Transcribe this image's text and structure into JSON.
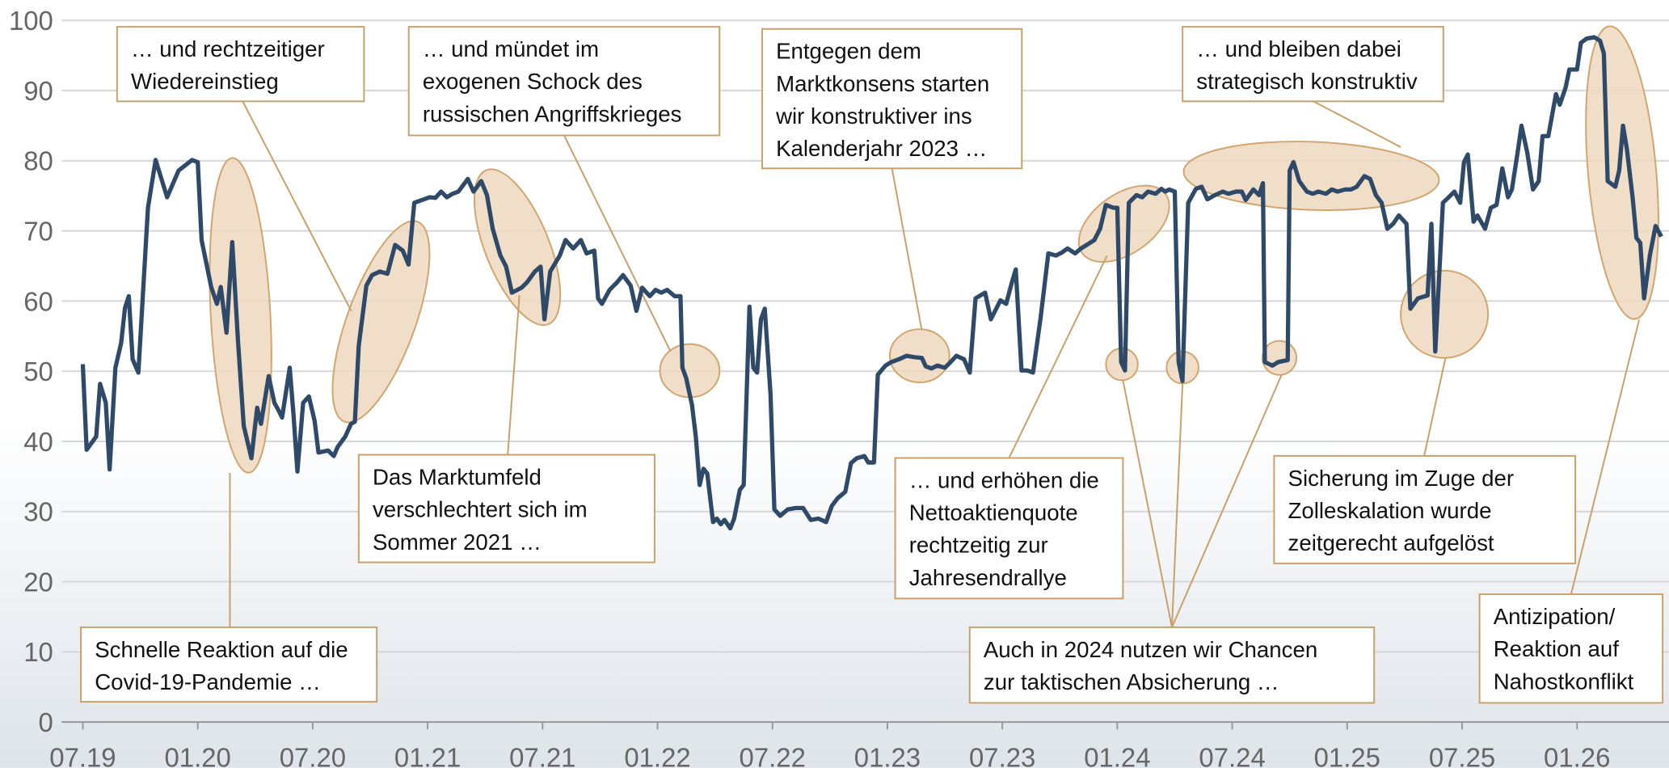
{
  "chart_data": {
    "type": "line",
    "xlim": [
      -1.1,
      82.8
    ],
    "ylim": [
      0,
      100
    ],
    "yticks": [
      0,
      10,
      20,
      30,
      40,
      50,
      60,
      70,
      80,
      90,
      100
    ],
    "xticks": [
      {
        "value": 0,
        "label": "07.19"
      },
      {
        "value": 6,
        "label": "01.20"
      },
      {
        "value": 12,
        "label": "07.20"
      },
      {
        "value": 18,
        "label": "01.21"
      },
      {
        "value": 24,
        "label": "07.21"
      },
      {
        "value": 30,
        "label": "01.22"
      },
      {
        "value": 36,
        "label": "07.22"
      },
      {
        "value": 42,
        "label": "01.23"
      },
      {
        "value": 48,
        "label": "07.23"
      },
      {
        "value": 54,
        "label": "01.24"
      },
      {
        "value": 60,
        "label": "07.24"
      },
      {
        "value": 66,
        "label": "01.25"
      },
      {
        "value": 72,
        "label": "07.25"
      },
      {
        "value": 78,
        "label": "01.26"
      }
    ],
    "grid": true,
    "series": [
      {
        "color": "#2e4a68",
        "x": [
          0,
          0.2,
          0.7,
          0.9,
          1.2,
          1.4,
          1.7,
          2,
          2.2,
          2.4,
          2.6,
          2.9,
          3.4,
          3.8,
          4.4,
          5,
          5.7,
          6,
          6.2,
          6.7,
          7,
          7.2,
          7.5,
          7.8,
          8.1,
          8.4,
          8.8,
          9.1,
          9.3,
          9.7,
          10,
          10.2,
          10.4,
          10.8,
          11,
          11.2,
          11.5,
          11.8,
          12.1,
          12.3,
          12.8,
          13.1,
          13.3,
          13.7,
          14,
          14.2,
          14.4,
          14.8,
          15.1,
          15.5,
          15.9,
          16.3,
          16.7,
          17,
          17.3,
          17.7,
          18.1,
          18.4,
          18.7,
          19,
          19.3,
          19.6,
          20.1,
          20.4,
          20.8,
          21.1,
          21.4,
          21.8,
          22.1,
          22.4,
          22.9,
          23.2,
          23.6,
          23.9,
          24.1,
          24.4,
          24.9,
          25.2,
          25.6,
          26,
          26.3,
          26.7,
          26.9,
          27.1,
          27.5,
          27.9,
          28.2,
          28.6,
          28.9,
          29.2,
          29.6,
          29.9,
          30.2,
          30.5,
          30.9,
          31.2,
          31.3,
          31.5,
          31.8,
          32,
          32.2,
          32.4,
          32.6,
          32.9,
          33.1,
          33.3,
          33.5,
          33.8,
          34,
          34.3,
          34.5,
          34.8,
          35,
          35.2,
          35.4,
          35.6,
          35.9,
          36.1,
          36.4,
          36.8,
          37.2,
          37.6,
          38,
          38.4,
          38.8,
          39.1,
          39.4,
          39.8,
          40.1,
          40.4,
          40.8,
          41,
          41.3,
          41.5,
          41.9,
          42.2,
          42.6,
          43,
          43.4,
          43.8,
          44,
          44.3,
          44.6,
          45,
          45.3,
          45.6,
          46,
          46.3,
          46.6,
          47.1,
          47.4,
          47.9,
          48.2,
          48.5,
          48.7,
          49,
          49.3,
          49.6,
          50,
          50.4,
          50.8,
          51.1,
          51.4,
          51.8,
          52.1,
          52.4,
          52.8,
          53.1,
          53.4,
          53.8,
          54,
          54.2,
          54.4,
          54.6,
          55,
          55.3,
          55.6,
          56,
          56.3,
          56.5,
          56.7,
          57,
          57.2,
          57.4,
          57.7,
          58.1,
          58.4,
          58.7,
          59.1,
          59.5,
          59.8,
          60.2,
          60.5,
          60.7,
          61.1,
          61.4,
          61.6,
          61.7,
          62.1,
          62.4,
          62.9,
          63,
          63.2,
          63.5,
          63.9,
          64.2,
          64.5,
          64.9,
          65.2,
          65.5,
          65.9,
          66.2,
          66.5,
          66.9,
          67.2,
          67.5,
          67.8,
          68.1,
          68.4,
          68.7,
          69.1,
          69.3,
          69.7,
          70.2,
          70.4,
          70.6,
          71,
          71.3,
          71.6,
          71.9,
          72.1,
          72.3,
          72.6,
          72.8,
          73.2,
          73.5,
          73.8,
          74.1,
          74.4,
          74.6,
          74.9,
          75.1,
          75.4,
          75.7,
          76,
          76.2,
          76.5,
          76.9,
          77.1,
          77.4,
          77.6,
          78,
          78.2,
          78.5,
          78.9,
          79.2,
          79.4,
          79.6,
          80,
          80.2,
          80.4,
          80.6,
          80.9,
          81.1,
          81.3,
          81.5,
          81.8,
          82.1,
          82.4
        ],
        "values": [
          51,
          38.8,
          40.7,
          48.2,
          45.5,
          36,
          50.5,
          54,
          59,
          60.7,
          51.7,
          49.8,
          73.3,
          80.1,
          74.8,
          78.6,
          80.1,
          79.8,
          68.7,
          62,
          59.6,
          62,
          55.5,
          68.4,
          54.3,
          42.2,
          37.6,
          44.8,
          42.5,
          49.3,
          45.5,
          44.5,
          43.4,
          50.5,
          43.7,
          35.7,
          45.5,
          46.4,
          42.9,
          38.4,
          38.7,
          37.9,
          39.2,
          40.7,
          42.5,
          42.8,
          53.6,
          62.2,
          63.7,
          64.2,
          63.9,
          68,
          67.2,
          65.2,
          74,
          74.4,
          74.8,
          74.7,
          75.6,
          74.8,
          75.3,
          75.6,
          77.4,
          75.6,
          77.1,
          75.1,
          70.3,
          66.5,
          64.9,
          61.2,
          61.9,
          62.7,
          64.2,
          64.9,
          57.4,
          64.2,
          66.5,
          68.7,
          67.5,
          68.7,
          66.8,
          67.2,
          60.4,
          59.6,
          61.6,
          62.7,
          63.7,
          62.2,
          58.6,
          61.9,
          60.7,
          61.6,
          61.2,
          61.6,
          60.7,
          60.7,
          50.5,
          49,
          45.2,
          40.7,
          33.8,
          36.1,
          35.4,
          28.5,
          29,
          28.2,
          28.8,
          27.6,
          29,
          33.1,
          33.8,
          59.2,
          50.5,
          49.8,
          57.4,
          58.9,
          46.7,
          30.3,
          29.4,
          30.3,
          30.5,
          30.5,
          28.8,
          29,
          28.5,
          30.8,
          31.9,
          32.8,
          36.9,
          37.6,
          37.9,
          37,
          37,
          49.5,
          50.8,
          51.3,
          51.7,
          52.2,
          52,
          51.9,
          50.7,
          50.4,
          50.8,
          50.5,
          51.3,
          52.2,
          51.7,
          49.8,
          60.4,
          61.2,
          57.4,
          60.1,
          59.6,
          62.7,
          64.5,
          50.1,
          50.1,
          49.8,
          57.7,
          66.8,
          66.5,
          66.9,
          67.5,
          66.8,
          67.5,
          68,
          68.7,
          70.3,
          73.7,
          73.3,
          73.3,
          51.3,
          50.1,
          74,
          75.1,
          74.8,
          75.6,
          75.3,
          76,
          75.6,
          75.9,
          75.6,
          51.3,
          48.6,
          74,
          76,
          76.3,
          74.5,
          75.1,
          75.6,
          75.3,
          75.6,
          75.6,
          74.4,
          75.9,
          75.1,
          76.8,
          51.3,
          50.8,
          51.3,
          51.6,
          78.6,
          79.8,
          77.1,
          75.6,
          75.3,
          75.6,
          75.3,
          75.9,
          75.6,
          75.9,
          75.9,
          76.3,
          77.8,
          77.4,
          75.1,
          74,
          70.3,
          71,
          72.2,
          71,
          58.9,
          60.4,
          60.8,
          71,
          52.8,
          74,
          74.8,
          75.6,
          74,
          79.8,
          80.9,
          71.3,
          72.2,
          70.3,
          73.3,
          73.7,
          78.9,
          74.8,
          75.9,
          81.2,
          85,
          81.2,
          75.9,
          77.1,
          83.5,
          83.5,
          89.5,
          88,
          90.4,
          93,
          93,
          96.8,
          97.4,
          97.6,
          97.1,
          95.3,
          77.1,
          76.3,
          78.6,
          85,
          81.7,
          74.8,
          69,
          68.3,
          60.4,
          66.5,
          70.7,
          69.2
        ]
      }
    ],
    "annotations": [
      {
        "lines": [
          "… und rechtzeitiger",
          "Wiedereinstieg"
        ]
      },
      {
        "lines": [
          "… und mündet im",
          "exogenen Schock des",
          "russischen Angriffskrieges"
        ]
      },
      {
        "lines": [
          "Entgegen dem",
          "Marktkonsens starten",
          "wir konstruktiver ins",
          "Kalenderjahr 2023 …"
        ]
      },
      {
        "lines": [
          "… und bleiben dabei",
          "strategisch konstruktiv"
        ]
      },
      {
        "lines": [
          "Das Marktumfeld",
          "verschlechtert sich im",
          "Sommer 2021 …"
        ]
      },
      {
        "lines": [
          "… und erhöhen die",
          "Nettoaktienquote",
          "rechtzeitig zur",
          "Jahresendrallye"
        ]
      },
      {
        "lines": [
          "Sicherung im Zuge der",
          "Zolleskalation wurde",
          "zeitgerecht aufgelöst"
        ]
      },
      {
        "lines": [
          "Schnelle Reaktion auf die",
          "Covid-19-Pandemie …"
        ]
      },
      {
        "lines": [
          "Auch in 2024 nutzen wir Chancen",
          "zur taktischen Absicherung …"
        ]
      },
      {
        "lines": [
          "Antizipation/",
          "Reaktion auf",
          "Nahostkonflikt"
        ]
      }
    ]
  }
}
